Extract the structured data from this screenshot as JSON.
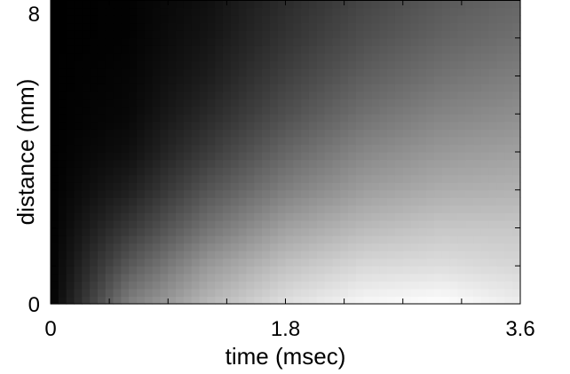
{
  "chart_data": {
    "type": "heatmap",
    "title": "",
    "xlabel": "time (msec)",
    "ylabel": "distance (mm)",
    "xlim": [
      0,
      3.6
    ],
    "ylim": [
      0,
      8
    ],
    "xticks": [
      0,
      1.8,
      3.6
    ],
    "xtick_labels": [
      "0",
      "1.8",
      "3.6"
    ],
    "yticks": [
      0,
      8
    ],
    "ytick_labels": [
      "0",
      "8"
    ],
    "x_minor_ticks": [
      0.45,
      0.9,
      1.35,
      2.25,
      2.7,
      3.15
    ],
    "y_minor_ticks": [
      1,
      2,
      3,
      4,
      5,
      6,
      7
    ],
    "colormap": "gray",
    "intensity_note": "0 = black, 1 = white",
    "grid": false,
    "legend": "none",
    "x": [
      0.0,
      0.6,
      1.2,
      1.8,
      2.4,
      3.0,
      3.6
    ],
    "y": [
      0,
      1,
      2,
      3,
      4,
      5,
      6,
      7,
      8
    ],
    "z": [
      [
        0.0,
        0.5,
        0.72,
        0.88,
        0.97,
        1.0,
        0.93
      ],
      [
        0.0,
        0.35,
        0.6,
        0.76,
        0.85,
        0.87,
        0.84
      ],
      [
        0.0,
        0.22,
        0.45,
        0.63,
        0.73,
        0.78,
        0.78
      ],
      [
        0.0,
        0.12,
        0.33,
        0.5,
        0.62,
        0.68,
        0.7
      ],
      [
        0.0,
        0.06,
        0.23,
        0.4,
        0.53,
        0.6,
        0.63
      ],
      [
        0.0,
        0.03,
        0.16,
        0.31,
        0.44,
        0.52,
        0.56
      ],
      [
        0.0,
        0.02,
        0.11,
        0.25,
        0.37,
        0.45,
        0.5
      ],
      [
        0.0,
        0.01,
        0.08,
        0.2,
        0.31,
        0.39,
        0.44
      ],
      [
        0.0,
        0.01,
        0.06,
        0.17,
        0.27,
        0.35,
        0.4
      ]
    ]
  }
}
